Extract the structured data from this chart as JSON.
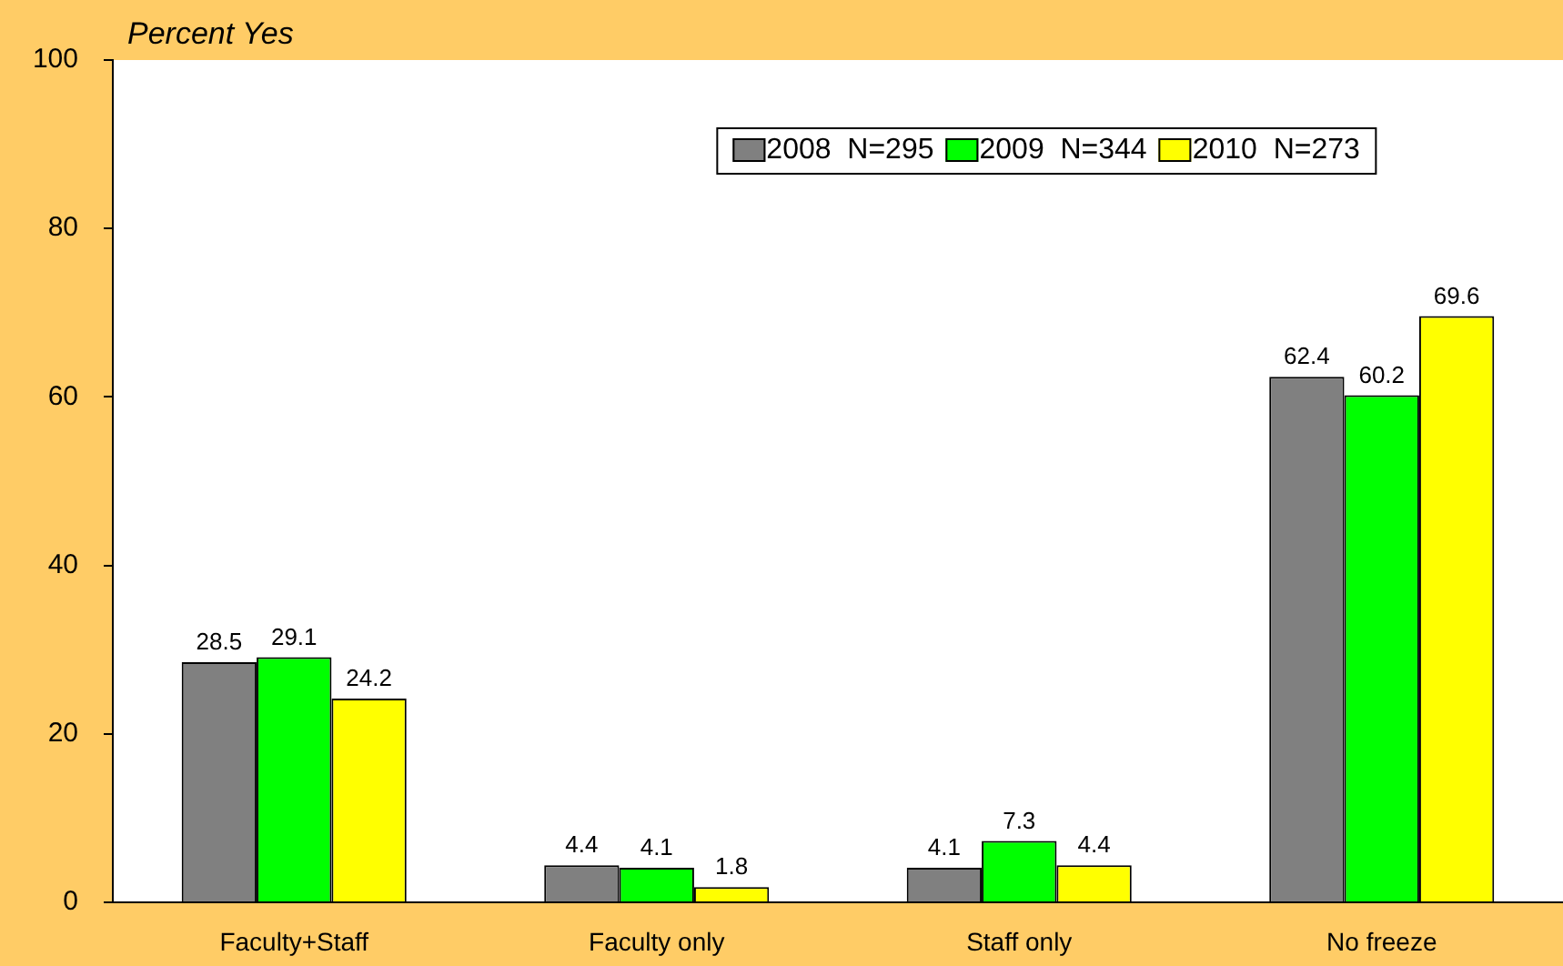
{
  "chart_data": {
    "type": "bar",
    "ylabel": "Percent Yes",
    "categories": [
      "Faculty+Staff",
      "Faculty only",
      "Staff only",
      "No freeze"
    ],
    "series": [
      {
        "name": "2008  N=295",
        "color": "#808080",
        "values": [
          28.5,
          4.4,
          4.1,
          62.4
        ]
      },
      {
        "name": "2009  N=344",
        "color": "#00ff00",
        "values": [
          29.1,
          4.1,
          7.3,
          60.2
        ]
      },
      {
        "name": "2010  N=273",
        "color": "#ffff00",
        "values": [
          24.2,
          1.8,
          4.4,
          69.6
        ]
      }
    ],
    "ylim": [
      0,
      100
    ],
    "yticks": [
      0,
      20,
      40,
      60,
      80,
      100
    ],
    "grid": false,
    "legend": "top",
    "data_labels": true
  }
}
